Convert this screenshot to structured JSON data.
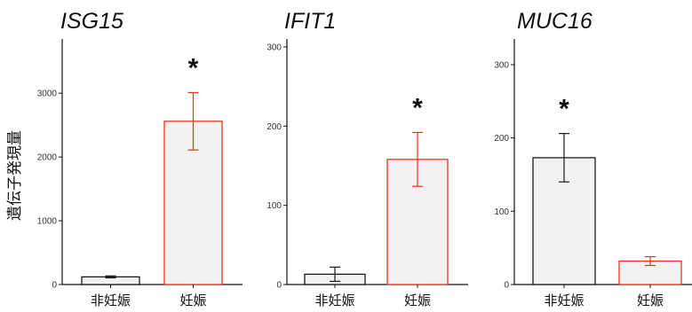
{
  "y_axis_label": "遺伝子発現量",
  "colors": {
    "control": "#1a1a1a",
    "pregnant": "#e8321e",
    "bar_fill": "#f2f2f2"
  },
  "chart_data": [
    {
      "type": "bar",
      "title": "ISG15",
      "categories": [
        "非妊娠",
        "妊娠"
      ],
      "values": [
        120,
        2560
      ],
      "errors": [
        15,
        450
      ],
      "ylim": [
        0,
        3850
      ],
      "yticks": [
        0,
        1000,
        2000,
        3000
      ],
      "significance": [
        {
          "index": 1,
          "label": "*"
        }
      ],
      "grid": false
    },
    {
      "type": "bar",
      "title": "IFIT1",
      "categories": [
        "非妊娠",
        "妊娠"
      ],
      "values": [
        13,
        158
      ],
      "errors": [
        9,
        34
      ],
      "ylim": [
        0,
        310
      ],
      "yticks": [
        0,
        100,
        200,
        300
      ],
      "significance": [
        {
          "index": 1,
          "label": "*"
        }
      ],
      "grid": false
    },
    {
      "type": "bar",
      "title": "MUC16",
      "categories": [
        "非妊娠",
        "妊娠"
      ],
      "values": [
        173,
        32
      ],
      "errors": [
        33,
        6
      ],
      "ylim": [
        0,
        335
      ],
      "yticks": [
        0,
        100,
        200,
        300
      ],
      "significance": [
        {
          "index": 0,
          "label": "*"
        }
      ],
      "grid": false
    }
  ]
}
